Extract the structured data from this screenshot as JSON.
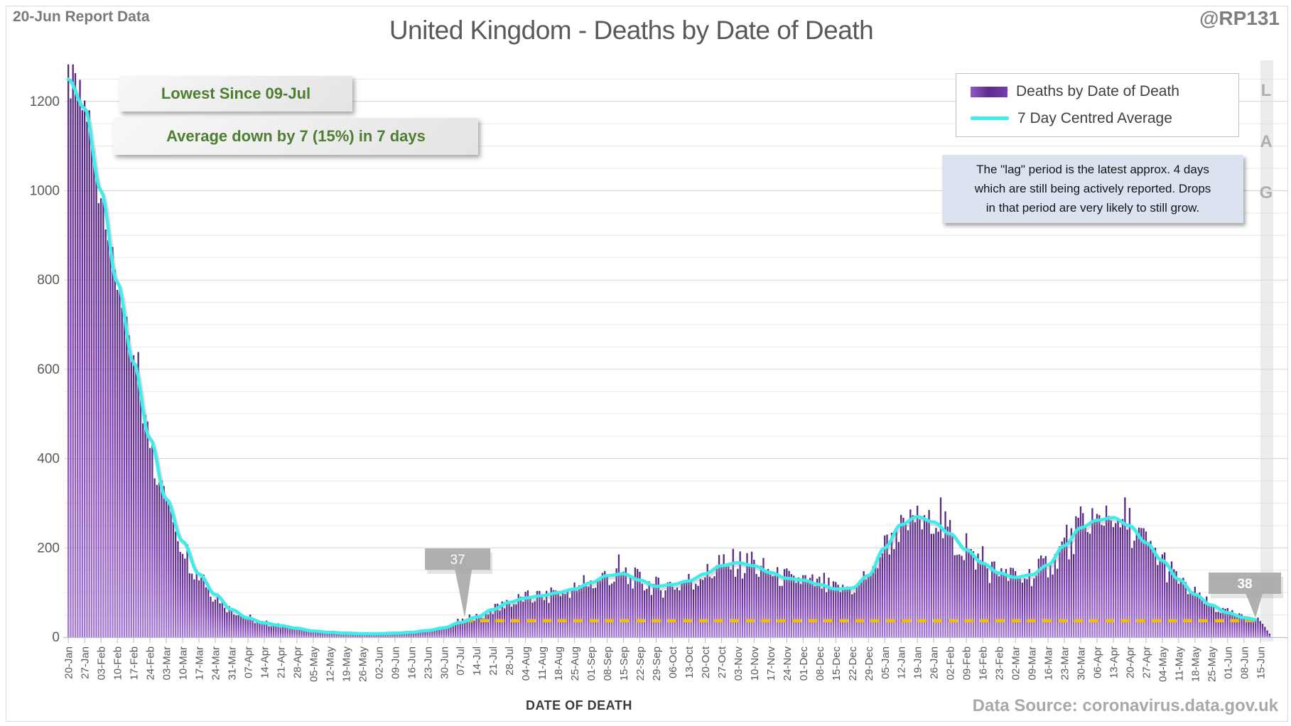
{
  "header": {
    "report_label": "20-Jun Report Data",
    "title": "United Kingdom - Deaths by Date of Death",
    "handle": "@RP131"
  },
  "legend": [
    {
      "label": "Deaths by Date of Death",
      "swatch": "purple-gradient-bar"
    },
    {
      "label": "7 Day Centred Average",
      "swatch": "cyan-line"
    }
  ],
  "annotations": {
    "green_callout_1": "Lowest Since 09-Jul",
    "green_callout_2": "Average down by 7 (15%) in 7 days",
    "lag_note": "The \"lag\" period is the latest approx. 4 days\nwhich are still being actively reported.  Drops\nin that period are very likely to still grow.",
    "lag_band_label": "L\nA\nG"
  },
  "footer": {
    "x_axis_title": "DATE OF DEATH",
    "data_source": "Data Source: coronavirus.data.gov.uk"
  },
  "colors": {
    "bar_top": "#55277E",
    "bar_mid": "#7A3CB2",
    "bar_bottom": "#A678D6",
    "average_line": "#3FECEC",
    "threshold_line": "#EFC000",
    "green_text": "#4E7E2F",
    "note_bg": "#DBE3F1",
    "callout_gray": "#A9A9A9",
    "lag_band": "#D9D9D9"
  },
  "chart_data": {
    "type": "bar",
    "title": "United Kingdom - Deaths by Date of Death",
    "xlabel": "DATE OF DEATH",
    "ylabel": "",
    "ylim": [
      0,
      1292
    ],
    "grid": {
      "minor_step": 50,
      "major_step": 200
    },
    "y_ticks": [
      0,
      200,
      400,
      600,
      800,
      1000,
      1200
    ],
    "weekly_tick_labels": [
      "20-Jan",
      "27-Jan",
      "03-Feb",
      "10-Feb",
      "17-Feb",
      "24-Feb",
      "03-Mar",
      "10-Mar",
      "17-Mar",
      "24-Mar",
      "31-Mar",
      "07-Apr",
      "14-Apr",
      "21-Apr",
      "28-Apr",
      "05-May",
      "12-May",
      "19-May",
      "26-May",
      "02-Jun",
      "09-Jun",
      "16-Jun",
      "23-Jun",
      "30-Jun",
      "07-Jul",
      "14-Jul",
      "21-Jul",
      "28-Jul",
      "04-Aug",
      "11-Aug",
      "18-Aug",
      "25-Aug",
      "01-Sep",
      "08-Sep",
      "15-Sep",
      "22-Sep",
      "29-Sep",
      "06-Oct",
      "13-Oct",
      "20-Oct",
      "27-Oct",
      "03-Nov",
      "10-Nov",
      "17-Nov",
      "24-Nov",
      "01-Dec",
      "08-Dec",
      "15-Dec",
      "22-Dec",
      "29-Dec",
      "05-Jan",
      "12-Jan",
      "19-Jan",
      "26-Jan",
      "02-Feb",
      "09-Feb",
      "16-Feb",
      "23-Feb",
      "02-Mar",
      "09-Mar",
      "16-Mar",
      "23-Mar",
      "30-Mar",
      "06-Apr",
      "13-Apr",
      "20-Apr",
      "27-Apr",
      "04-May",
      "11-May",
      "18-May",
      "25-May",
      "01-Jun",
      "08-Jun",
      "15-Jun"
    ],
    "series": [
      {
        "name": "Deaths by Date of Death",
        "type": "bar",
        "note": "daily bars; heights follow the weekly average anchors below with daily reporting noise"
      },
      {
        "name": "7 Day Centred Average",
        "type": "line",
        "weekly_values": [
          1250,
          1185,
          1000,
          795,
          615,
          445,
          310,
          215,
          142,
          96,
          62,
          43,
          32,
          26,
          20,
          14,
          11,
          9,
          8,
          8,
          9,
          11,
          15,
          21,
          33,
          45,
          62,
          78,
          88,
          93,
          100,
          108,
          122,
          138,
          142,
          128,
          114,
          118,
          126,
          142,
          160,
          167,
          160,
          145,
          132,
          128,
          118,
          108,
          110,
          138,
          200,
          252,
          270,
          258,
          232,
          196,
          166,
          144,
          134,
          140,
          162,
          205,
          245,
          262,
          268,
          250,
          212,
          172,
          130,
          96,
          72,
          55,
          44,
          38
        ]
      }
    ],
    "lag_day_values": [
      30,
      23,
      15,
      8
    ],
    "threshold_line": {
      "value": 37,
      "style": "dashed",
      "start_day_index": 170
    },
    "markers": [
      {
        "label": "37",
        "day_index": 170
      },
      {
        "label": "38",
        "day_index": 509
      }
    ]
  }
}
